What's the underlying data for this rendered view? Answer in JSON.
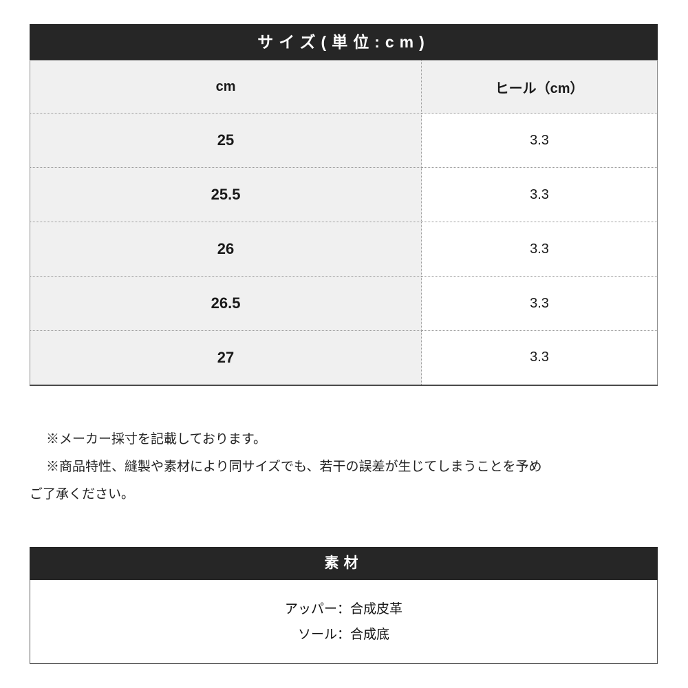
{
  "size_section": {
    "title": "サイズ(単位:cm)",
    "title_bg": "#262626",
    "title_color": "#ffffff",
    "cell_bg": "#f0f0f0",
    "columns": [
      "cm",
      "ヒール（cm）"
    ],
    "rows": [
      {
        "size": "25",
        "heel": "3.3"
      },
      {
        "size": "25.5",
        "heel": "3.3"
      },
      {
        "size": "26",
        "heel": "3.3"
      },
      {
        "size": "26.5",
        "heel": "3.3"
      },
      {
        "size": "27",
        "heel": "3.3"
      }
    ]
  },
  "notes": {
    "lines": [
      "※メーカー採寸を記載しております。",
      "※商品特性、縫製や素材により同サイズでも、若干の誤差が生じてしまうことを予め",
      "ご了承ください。"
    ]
  },
  "material_section": {
    "title": "素材",
    "lines": [
      "アッパー：合成皮革",
      "ソール：合成底"
    ]
  }
}
